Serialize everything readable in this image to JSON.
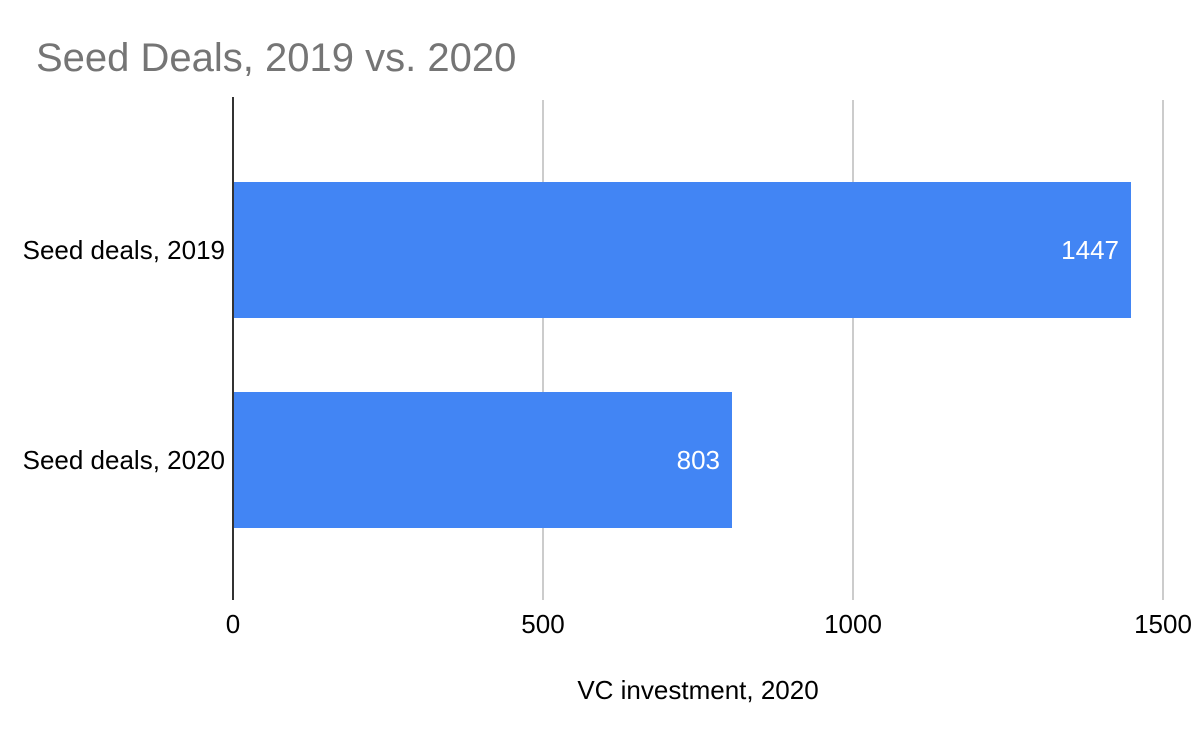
{
  "chart_data": {
    "type": "bar",
    "orientation": "horizontal",
    "title": "Seed Deals, 2019 vs. 2020",
    "categories": [
      "Seed deals, 2019",
      "Seed deals, 2020"
    ],
    "values": [
      1447,
      803
    ],
    "value_labels": [
      "1447",
      "803"
    ],
    "xlabel": "VC investment, 2020",
    "ylabel": "",
    "xlim": [
      0,
      1500
    ],
    "xticks": [
      0,
      500,
      1000,
      1500
    ],
    "grid": true,
    "legend": "none",
    "colors": {
      "bar": "#4285f4",
      "title_text": "#757575",
      "gridline": "#cccccc",
      "axis_line": "#333333",
      "tick_text": "#000000",
      "category_text": "#000000",
      "value_text": "#ffffff",
      "background": "#ffffff"
    }
  }
}
